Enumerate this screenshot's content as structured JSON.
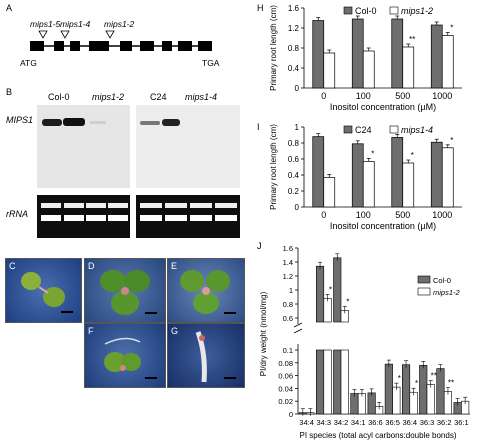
{
  "panel_a": {
    "letter": "A",
    "mutations": [
      "mips1-5",
      "mips1-4",
      "mips1-2"
    ],
    "start": "ATG",
    "end": "TGA"
  },
  "panel_b": {
    "letter": "B",
    "lanes_left": [
      "Col-0",
      "mips1-2"
    ],
    "lanes_right": [
      "C24",
      "mips1-4"
    ],
    "row1": "MIPS1",
    "row2": "rRNA"
  },
  "photos": [
    {
      "letter": "C"
    },
    {
      "letter": "D"
    },
    {
      "letter": "E"
    },
    {
      "letter": "F"
    },
    {
      "letter": "G"
    }
  ],
  "colors": {
    "wt": "#6e6e6e",
    "mutant": "#ffffff"
  },
  "chart_data": [
    {
      "panel": "H",
      "type": "bar",
      "title": "",
      "ylabel": "Primary root length (cm)",
      "xlabel": "Inositol concentration (µM)",
      "categories": [
        "0",
        "100",
        "500",
        "1000"
      ],
      "ylim": [
        0,
        1.6
      ],
      "yticks": [
        "0",
        "0.4",
        "0.8",
        "1.2",
        "1.6"
      ],
      "series": [
        {
          "name": "Col-0",
          "values": [
            1.35,
            1.38,
            1.38,
            1.26
          ]
        },
        {
          "name": "mips1-2",
          "values": [
            0.7,
            0.74,
            0.82,
            1.05
          ]
        }
      ],
      "annotations": [
        {
          "category": 2,
          "series": 1,
          "text": "**"
        },
        {
          "category": 3,
          "series": 1,
          "text": "*"
        }
      ]
    },
    {
      "panel": "I",
      "type": "bar",
      "title": "",
      "ylabel": "Primary root length (cm)",
      "xlabel": "Inositol concentration (µM)",
      "categories": [
        "0",
        "100",
        "500",
        "1000"
      ],
      "ylim": [
        0,
        1.0
      ],
      "yticks": [
        "0",
        "0.2",
        "0.4",
        "0.6",
        "0.8",
        "1"
      ],
      "series": [
        {
          "name": "C24",
          "values": [
            0.88,
            0.79,
            0.87,
            0.81
          ]
        },
        {
          "name": "mips1-4",
          "values": [
            0.37,
            0.57,
            0.55,
            0.74
          ]
        }
      ],
      "annotations": [
        {
          "category": 1,
          "series": 1,
          "text": "*"
        },
        {
          "category": 2,
          "series": 1,
          "text": "*"
        },
        {
          "category": 3,
          "series": 1,
          "text": "*"
        }
      ]
    },
    {
      "panel": "J",
      "type": "bar",
      "ylabel": "PI/dry weight (nmol/mg)",
      "xlabel": "PI species (total acyl carbons:double bonds)",
      "categories": [
        "34:4",
        "34:3",
        "34:2",
        "34:1",
        "36:6",
        "36:5",
        "36:4",
        "36:3",
        "36:2",
        "36:1"
      ],
      "yticks_low": [
        "0",
        "0.02",
        "0.04",
        "0.06",
        "0.08",
        "0.1"
      ],
      "yticks_high": [
        "0.6",
        "0.8",
        "1",
        "1.2",
        "1.4",
        "1.6"
      ],
      "axis_break": true,
      "legend": "top-right",
      "series": [
        {
          "name": "Col-0",
          "values": [
            0.002,
            1.34,
            1.46,
            0.032,
            0.033,
            0.078,
            0.077,
            0.076,
            0.071,
            0.018
          ]
        },
        {
          "name": "mips1-2",
          "values": [
            0.002,
            0.88,
            0.71,
            0.032,
            0.012,
            0.042,
            0.034,
            0.046,
            0.035,
            0.02
          ]
        }
      ],
      "annotations": [
        {
          "category": 1,
          "series": 1,
          "text": "*"
        },
        {
          "category": 2,
          "series": 1,
          "text": "*"
        },
        {
          "category": 5,
          "series": 1,
          "text": "*"
        },
        {
          "category": 6,
          "series": 1,
          "text": "*"
        },
        {
          "category": 7,
          "series": 1,
          "text": "**"
        },
        {
          "category": 8,
          "series": 1,
          "text": "**"
        }
      ]
    }
  ]
}
